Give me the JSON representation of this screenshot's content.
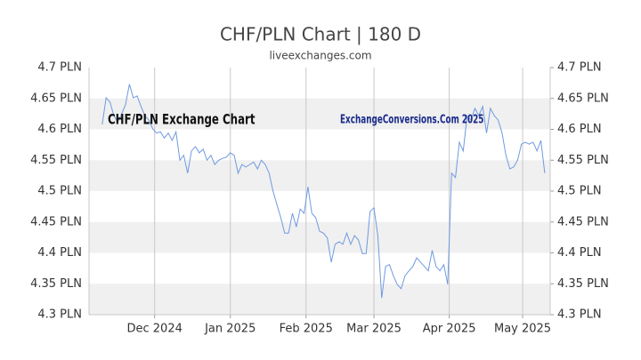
{
  "chart_data": {
    "type": "line",
    "title": "CHF/PLN Chart | 180 D",
    "subtitle": "liveexchanges.com",
    "annotations": [
      "CHF/PLN Exchange Chart",
      "ExchangeConversions.Com 2025"
    ],
    "color": "#6f9ae0",
    "grid": true,
    "xlim": [
      -3.4,
      115.4
    ],
    "xticks": [
      {
        "value": 13.5,
        "label": "Dec 2024"
      },
      {
        "value": 33.0,
        "label": "Jan 2025"
      },
      {
        "value": 52.5,
        "label": "Feb 2025"
      },
      {
        "value": 70.0,
        "label": "Mar 2025"
      },
      {
        "value": 89.4,
        "label": "Apr 2025"
      },
      {
        "value": 108.3,
        "label": "May 2025"
      }
    ],
    "ylim": [
      4.3,
      4.7
    ],
    "yticks": [
      {
        "value": 4.3,
        "label": "4.3 PLN"
      },
      {
        "value": 4.35,
        "label": "4.35 PLN"
      },
      {
        "value": 4.4,
        "label": "4.4 PLN"
      },
      {
        "value": 4.45,
        "label": "4.45 PLN"
      },
      {
        "value": 4.5,
        "label": "4.5 PLN"
      },
      {
        "value": 4.55,
        "label": "4.55 PLN"
      },
      {
        "value": 4.6,
        "label": "4.6 PLN"
      },
      {
        "value": 4.65,
        "label": "4.65 PLN"
      },
      {
        "value": 4.7,
        "label": "4.7 PLN"
      }
    ],
    "values": [
      4.608,
      4.651,
      4.644,
      4.622,
      4.612,
      4.625,
      4.64,
      4.673,
      4.651,
      4.654,
      4.637,
      4.622,
      4.615,
      4.601,
      4.594,
      4.596,
      4.586,
      4.594,
      4.582,
      4.596,
      4.55,
      4.558,
      4.529,
      4.565,
      4.572,
      4.562,
      4.568,
      4.55,
      4.558,
      4.543,
      4.55,
      4.553,
      4.555,
      4.562,
      4.558,
      4.529,
      4.543,
      4.539,
      4.543,
      4.547,
      4.536,
      4.55,
      4.543,
      4.529,
      4.5,
      4.478,
      4.457,
      4.432,
      4.432,
      4.464,
      4.442,
      4.471,
      4.464,
      4.507,
      4.464,
      4.457,
      4.435,
      4.432,
      4.424,
      4.385,
      4.414,
      4.418,
      4.414,
      4.432,
      4.414,
      4.428,
      4.421,
      4.399,
      4.399,
      4.467,
      4.473,
      4.428,
      4.327,
      4.378,
      4.381,
      4.363,
      4.349,
      4.342,
      4.363,
      4.371,
      4.378,
      4.392,
      4.385,
      4.378,
      4.371,
      4.404,
      4.378,
      4.371,
      4.381,
      4.349,
      4.529,
      4.522,
      4.579,
      4.565,
      4.622,
      4.615,
      4.634,
      4.622,
      4.637,
      4.594,
      4.634,
      4.622,
      4.615,
      4.594,
      4.558,
      4.536,
      4.539,
      4.55,
      4.576,
      4.579,
      4.576,
      4.579,
      4.565,
      4.582,
      4.529
    ]
  }
}
